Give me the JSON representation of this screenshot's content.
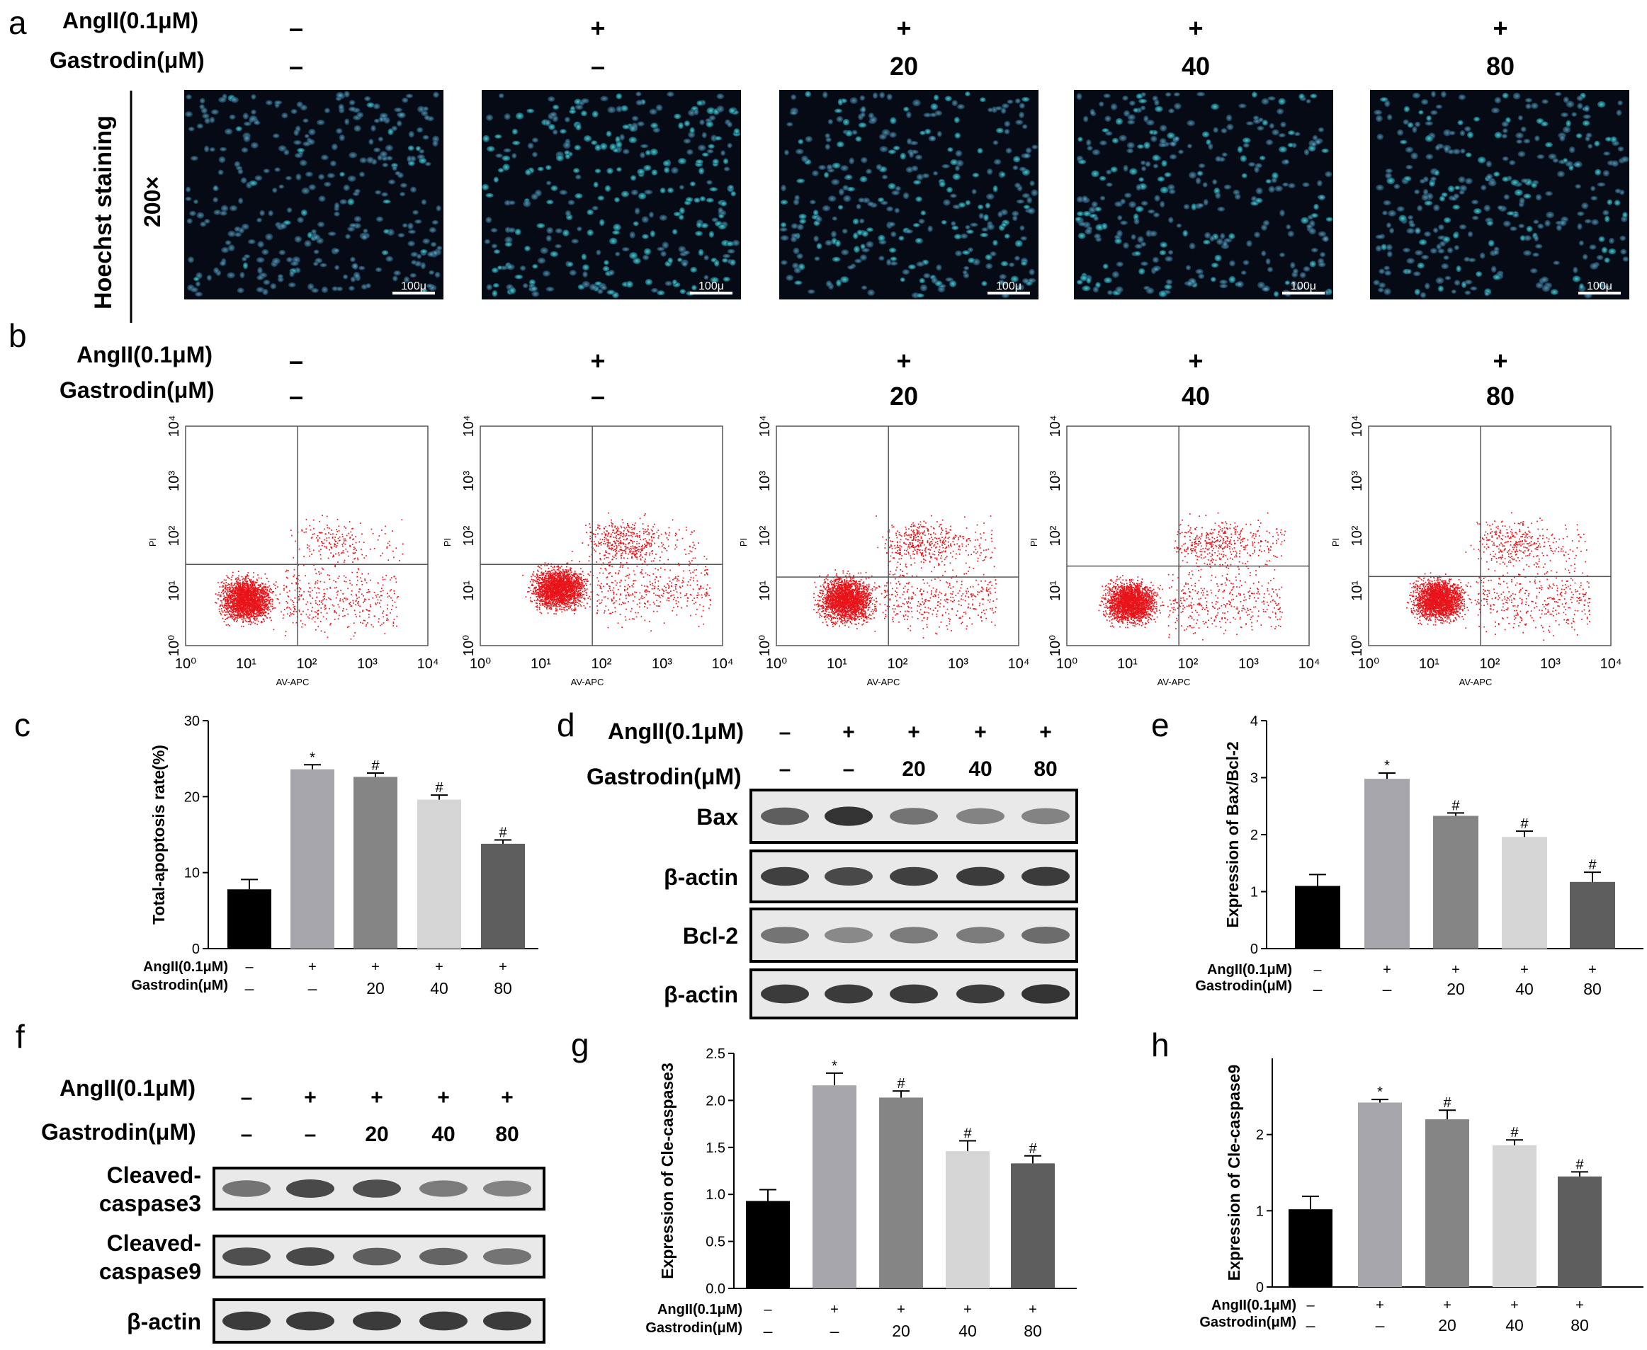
{
  "panels": {
    "a": "a",
    "b": "b",
    "c": "c",
    "d": "d",
    "e": "e",
    "f": "f",
    "g": "g",
    "h": "h"
  },
  "treatments": {
    "angII_label": "AngII(0.1μM)",
    "gastrodin_label": "Gastrodin(μM)",
    "angII": [
      "–",
      "+",
      "+",
      "+",
      "+"
    ],
    "gastrodin": [
      "–",
      "–",
      "20",
      "40",
      "80"
    ]
  },
  "hoechst": {
    "ylabel": "Hoechst staining",
    "magnification": "200×",
    "scale_bar": "100μ"
  },
  "flow": {
    "xlabel": "AV-APC",
    "ylabel": "PI",
    "ticks": [
      "10⁰",
      "10¹",
      "10²",
      "10³",
      "10⁴"
    ],
    "colors": {
      "dot": "#e8141a",
      "grid": "#555555"
    }
  },
  "western_d": {
    "bands": [
      "Bax",
      "β-actin",
      "Bcl-2",
      "β-actin"
    ]
  },
  "western_f": {
    "bands": [
      "Cleaved-caspase3",
      "Cleaved-caspase9",
      "β-actin"
    ],
    "band_lines": [
      [
        "Cleaved-",
        "caspase3"
      ],
      [
        "Cleaved-",
        "caspase9"
      ],
      [
        "β-actin"
      ]
    ]
  },
  "bar_colors": [
    "#000000",
    "#a6a6ac",
    "#858585",
    "#d5d5d5",
    "#5e5e5e"
  ],
  "chart_data": [
    {
      "id": "c",
      "type": "bar",
      "title": "",
      "ylabel": "Total-apoptosis rate(%)",
      "xlabel": "",
      "categories": [
        "–/–",
        "+/–",
        "+/20",
        "+/40",
        "+/80"
      ],
      "values": [
        7.8,
        23.6,
        22.6,
        19.6,
        13.8
      ],
      "errors": [
        1.3,
        0.6,
        0.5,
        0.6,
        0.5
      ],
      "significance": [
        "",
        "*",
        "#",
        "#",
        "#"
      ],
      "ylim": [
        0,
        30
      ],
      "yticks": [
        0,
        10,
        20,
        30
      ]
    },
    {
      "id": "e",
      "type": "bar",
      "title": "",
      "ylabel": "Expression of Bax/Bcl-2",
      "xlabel": "",
      "categories": [
        "–/–",
        "+/–",
        "+/20",
        "+/40",
        "+/80"
      ],
      "values": [
        1.1,
        2.98,
        2.33,
        1.96,
        1.17
      ],
      "errors": [
        0.2,
        0.1,
        0.05,
        0.1,
        0.17
      ],
      "significance": [
        "",
        "*",
        "#",
        "#",
        "#"
      ],
      "ylim": [
        0,
        4
      ],
      "yticks": [
        0,
        1,
        2,
        3,
        4
      ]
    },
    {
      "id": "g",
      "type": "bar",
      "title": "",
      "ylabel": "Expression of Cle-caspase3",
      "xlabel": "",
      "categories": [
        "–/–",
        "+/–",
        "+/20",
        "+/40",
        "+/80"
      ],
      "values": [
        0.93,
        2.16,
        2.03,
        1.46,
        1.33
      ],
      "errors": [
        0.12,
        0.13,
        0.07,
        0.11,
        0.08
      ],
      "significance": [
        "",
        "*",
        "#",
        "#",
        "#"
      ],
      "ylim": [
        0,
        2.5
      ],
      "yticks": [
        0.0,
        0.5,
        1.0,
        1.5,
        2.0,
        2.5
      ],
      "ytick_labels": [
        "0.0",
        "0.5",
        "1.0",
        "1.5",
        "2.0",
        "2.5"
      ]
    },
    {
      "id": "h",
      "type": "bar",
      "title": "",
      "ylabel": "Expression of Cle-caspase9",
      "xlabel": "",
      "categories": [
        "–/–",
        "+/–",
        "+/20",
        "+/40",
        "+/80"
      ],
      "values": [
        1.02,
        2.42,
        2.2,
        1.86,
        1.45
      ],
      "errors": [
        0.17,
        0.04,
        0.12,
        0.07,
        0.06
      ],
      "significance": [
        "",
        "*",
        "#",
        "#",
        "#"
      ],
      "ylim": [
        0,
        3
      ],
      "yticks": [
        0,
        1,
        2
      ]
    }
  ]
}
